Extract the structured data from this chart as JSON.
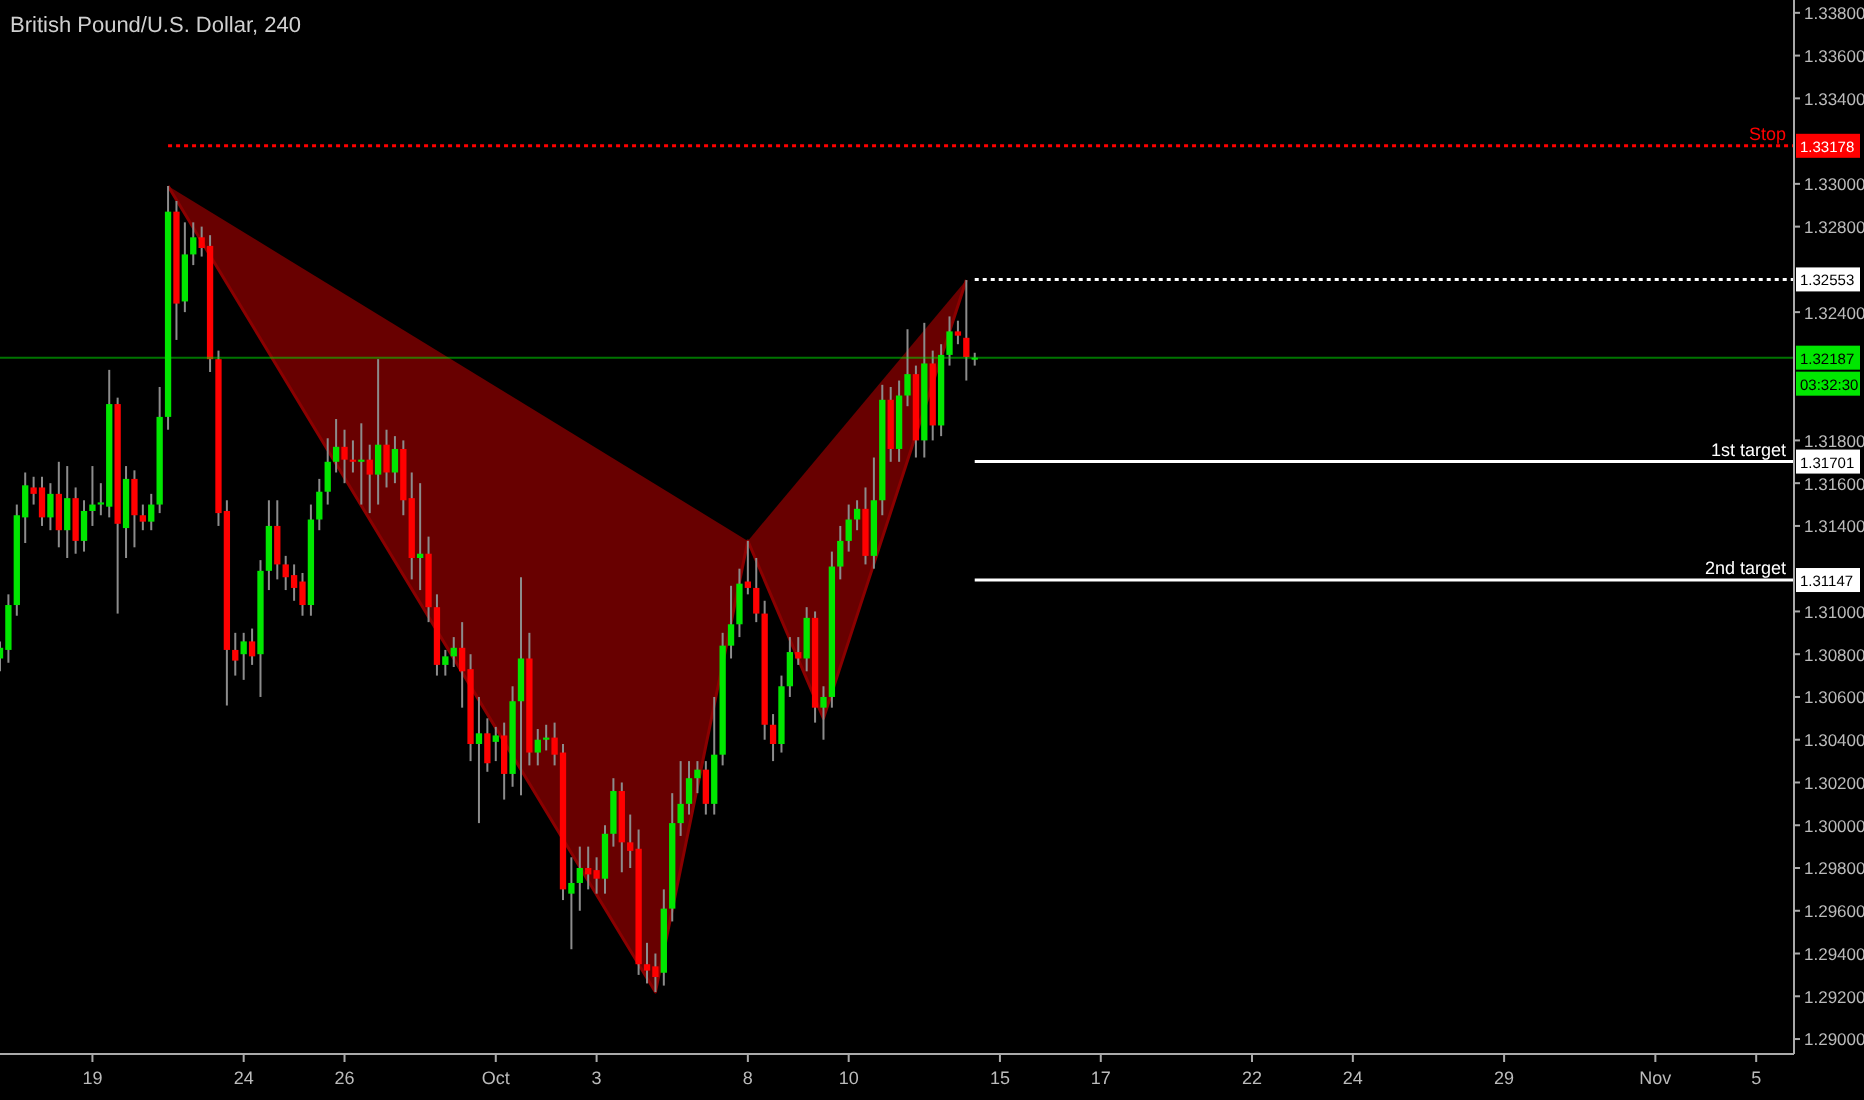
{
  "chart_data": {
    "type": "candlestick",
    "title": "British Pound/U.S. Dollar, 240",
    "categories": [
      null,
      null,
      null,
      null,
      null,
      null,
      null,
      null,
      null,
      null,
      null,
      "19",
      null,
      null,
      null,
      null,
      null,
      null,
      null,
      null,
      null,
      null,
      null,
      null,
      null,
      null,
      null,
      null,
      null,
      "24",
      null,
      null,
      null,
      null,
      null,
      null,
      null,
      null,
      null,
      null,
      null,
      "26",
      null,
      null,
      null,
      null,
      null,
      null,
      null,
      null,
      null,
      null,
      null,
      null,
      null,
      null,
      null,
      null,
      null,
      "Oct",
      null,
      null,
      null,
      null,
      null,
      null,
      null,
      null,
      null,
      null,
      null,
      "3",
      null,
      null,
      null,
      null,
      null,
      null,
      null,
      null,
      null,
      null,
      null,
      null,
      null,
      null,
      null,
      null,
      null,
      "8",
      null,
      null,
      null,
      null,
      null,
      null,
      null,
      null,
      null,
      null,
      null,
      "10",
      null,
      null,
      null,
      null,
      null,
      null,
      null,
      null,
      null,
      null,
      null,
      null,
      null,
      null,
      null,
      null,
      null,
      "15",
      null,
      null,
      null,
      null,
      null,
      null,
      null,
      null,
      null,
      null,
      null,
      "17",
      null,
      null,
      null,
      null,
      null,
      null,
      null,
      null,
      null,
      null,
      null,
      null,
      null,
      null,
      null,
      null,
      null,
      "22",
      null,
      null,
      null,
      null,
      null,
      null,
      null,
      null,
      null,
      null,
      null,
      "24",
      null,
      null,
      null,
      null,
      null,
      null,
      null,
      null,
      null,
      null,
      null,
      null,
      null,
      null,
      null,
      null,
      null,
      "29",
      null,
      null,
      null,
      null,
      null,
      null,
      null,
      null,
      null,
      null,
      null,
      null,
      null,
      null,
      null,
      null,
      null,
      "Nov",
      null,
      null,
      null,
      null,
      null,
      null,
      null,
      null,
      null,
      null,
      null,
      "5",
      null,
      null,
      null,
      null
    ],
    "series": [
      {
        "type": "line",
        "color": "#8b0000",
        "values": [
          null,
          null,
          null,
          null,
          null,
          null,
          null,
          null,
          null,
          null,
          null,
          null,
          null,
          null,
          null,
          null,
          null,
          null,
          null,
          null,
          1.3299,
          null,
          null,
          null,
          null,
          null,
          null,
          null,
          null,
          null,
          null,
          null,
          null,
          null,
          null,
          null,
          null,
          null,
          null,
          null,
          null,
          null,
          null,
          null,
          null,
          null,
          null,
          null,
          null,
          null,
          null,
          null,
          null,
          null,
          null,
          null,
          null,
          null,
          null,
          null,
          null,
          null,
          null,
          null,
          null,
          null,
          null,
          null,
          null,
          null,
          null,
          null,
          null,
          null,
          null,
          null,
          null,
          null,
          1.2922,
          null,
          null,
          null,
          null,
          null,
          null,
          null,
          null,
          null,
          null,
          1.3133,
          null,
          null,
          null,
          null,
          null,
          null,
          null,
          null,
          1.305,
          null,
          null,
          null,
          null,
          null,
          null,
          null,
          null,
          null,
          null,
          null,
          null,
          null,
          null,
          null,
          null,
          1.3255,
          null,
          null,
          null,
          null,
          null,
          null,
          null,
          null,
          null,
          null,
          null,
          null,
          null,
          null,
          null,
          null,
          null,
          null,
          null,
          null,
          null,
          null,
          null,
          null,
          null,
          null,
          null,
          null,
          null,
          null,
          null,
          null,
          null,
          null,
          null,
          null,
          null,
          null,
          null,
          null,
          null,
          null,
          null,
          null,
          null,
          null,
          null,
          null,
          null,
          null,
          null,
          null,
          null,
          null,
          null,
          null,
          null,
          null,
          null,
          null,
          null,
          null,
          null,
          null,
          null,
          null,
          null,
          null,
          null,
          null,
          null,
          null,
          null,
          null,
          null,
          null,
          null,
          null,
          null,
          null,
          null,
          null,
          null,
          null,
          null,
          null,
          null,
          null,
          null,
          null,
          null,
          null,
          null,
          null,
          null,
          null,
          null,
          null
        ]
      },
      {
        "type": "candlestick",
        "ohlc": [
          [
            1.3078,
            1.3086,
            1.3072,
            1.3083
          ],
          [
            1.3082,
            1.3108,
            1.3076,
            1.3103
          ],
          [
            1.3103,
            1.315,
            1.3098,
            1.3145
          ],
          [
            1.3144,
            1.3165,
            1.3132,
            1.3159
          ],
          [
            1.3158,
            1.3163,
            1.315,
            1.3155
          ],
          [
            1.3158,
            1.3163,
            1.314,
            1.3144
          ],
          [
            1.3144,
            1.316,
            1.3138,
            1.3155
          ],
          [
            1.3155,
            1.317,
            1.313,
            1.3138
          ],
          [
            1.3138,
            1.3168,
            1.3125,
            1.3153
          ],
          [
            1.3153,
            1.3158,
            1.3127,
            1.3133
          ],
          [
            1.3133,
            1.3152,
            1.3128,
            1.3147
          ],
          [
            1.3147,
            1.3168,
            1.314,
            1.315
          ],
          [
            1.315,
            1.316,
            1.3145,
            1.3151
          ],
          [
            1.3149,
            1.3213,
            1.3144,
            1.3197
          ],
          [
            1.3197,
            1.32,
            1.3099,
            1.3141
          ],
          [
            1.3139,
            1.3168,
            1.3125,
            1.3162
          ],
          [
            1.3162,
            1.3166,
            1.313,
            1.3145
          ],
          [
            1.3145,
            1.315,
            1.3138,
            1.3142
          ],
          [
            1.3142,
            1.3155,
            1.3138,
            1.315
          ],
          [
            1.315,
            1.3205,
            1.3146,
            1.3191
          ],
          [
            1.3191,
            1.3299,
            1.3185,
            1.3287
          ],
          [
            1.3287,
            1.3292,
            1.3227,
            1.3244
          ],
          [
            1.3245,
            1.3282,
            1.324,
            1.3267
          ],
          [
            1.3267,
            1.3282,
            1.3262,
            1.3275
          ],
          [
            1.3275,
            1.328,
            1.3266,
            1.327
          ],
          [
            1.3271,
            1.3276,
            1.3212,
            1.3218
          ],
          [
            1.3218,
            1.3222,
            1.314,
            1.3146
          ],
          [
            1.3147,
            1.3152,
            1.3056,
            1.3082
          ],
          [
            1.3082,
            1.309,
            1.307,
            1.3077
          ],
          [
            1.308,
            1.309,
            1.3068,
            1.3086
          ],
          [
            1.3086,
            1.3092,
            1.3075,
            1.3079
          ],
          [
            1.308,
            1.3124,
            1.306,
            1.3119
          ],
          [
            1.3119,
            1.3152,
            1.311,
            1.314
          ],
          [
            1.314,
            1.3152,
            1.3115,
            1.3122
          ],
          [
            1.3122,
            1.3126,
            1.311,
            1.3116
          ],
          [
            1.3117,
            1.3122,
            1.3105,
            1.3111
          ],
          [
            1.3114,
            1.3118,
            1.3098,
            1.3103
          ],
          [
            1.3103,
            1.315,
            1.3098,
            1.3143
          ],
          [
            1.3143,
            1.3162,
            1.3138,
            1.3156
          ],
          [
            1.3156,
            1.3181,
            1.315,
            1.317
          ],
          [
            1.317,
            1.319,
            1.3165,
            1.3177
          ],
          [
            1.3177,
            1.3185,
            1.316,
            1.3171
          ],
          [
            1.3171,
            1.318,
            1.3165,
            1.317
          ],
          [
            1.317,
            1.3188,
            1.315,
            1.3171
          ],
          [
            1.3171,
            1.3178,
            1.3146,
            1.3164
          ],
          [
            1.3164,
            1.3218,
            1.315,
            1.3178
          ],
          [
            1.3178,
            1.3185,
            1.3158,
            1.3165
          ],
          [
            1.3165,
            1.3182,
            1.316,
            1.3176
          ],
          [
            1.3176,
            1.318,
            1.3145,
            1.3152
          ],
          [
            1.3153,
            1.3165,
            1.3115,
            1.3125
          ],
          [
            1.3125,
            1.316,
            1.311,
            1.3127
          ],
          [
            1.3127,
            1.3135,
            1.3095,
            1.3102
          ],
          [
            1.3102,
            1.3108,
            1.307,
            1.3075
          ],
          [
            1.3075,
            1.3082,
            1.307,
            1.3079
          ],
          [
            1.3079,
            1.3088,
            1.3074,
            1.3083
          ],
          [
            1.3083,
            1.3095,
            1.3055,
            1.3072
          ],
          [
            1.3073,
            1.308,
            1.303,
            1.3038
          ],
          [
            1.3038,
            1.306,
            1.3001,
            1.3043
          ],
          [
            1.3043,
            1.305,
            1.3025,
            1.3029
          ],
          [
            1.3039,
            1.3046,
            1.303,
            1.3042
          ],
          [
            1.3042,
            1.3048,
            1.3012,
            1.3024
          ],
          [
            1.3024,
            1.3065,
            1.3018,
            1.3058
          ],
          [
            1.3058,
            1.3116,
            1.3014,
            1.3078
          ],
          [
            1.3078,
            1.309,
            1.3028,
            1.3034
          ],
          [
            1.3034,
            1.3045,
            1.3028,
            1.304
          ],
          [
            1.304,
            1.3047,
            1.3035,
            1.3041
          ],
          [
            1.3041,
            1.3048,
            1.3028,
            1.3033
          ],
          [
            1.3034,
            1.3038,
            1.2965,
            1.297
          ],
          [
            1.2968,
            1.2985,
            1.2942,
            1.2973
          ],
          [
            1.2973,
            1.299,
            1.296,
            1.298
          ],
          [
            1.298,
            1.299,
            1.297,
            1.2977
          ],
          [
            1.2979,
            1.2985,
            1.2968,
            1.2975
          ],
          [
            1.2975,
            1.3,
            1.2968,
            1.2996
          ],
          [
            1.2996,
            1.3022,
            1.299,
            1.3016
          ],
          [
            1.3016,
            1.302,
            1.2978,
            1.2992
          ],
          [
            1.2992,
            1.3005,
            1.298,
            1.2988
          ],
          [
            1.2989,
            1.2998,
            1.293,
            1.2935
          ],
          [
            1.2935,
            1.2945,
            1.2926,
            1.2932
          ],
          [
            1.2934,
            1.294,
            1.2922,
            1.2929
          ],
          [
            1.2931,
            1.297,
            1.2925,
            1.2961
          ],
          [
            1.2961,
            1.3015,
            1.2955,
            1.3001
          ],
          [
            1.3001,
            1.303,
            1.2995,
            1.301
          ],
          [
            1.301,
            1.303,
            1.3005,
            1.3022
          ],
          [
            1.3022,
            1.303,
            1.3015,
            1.3026
          ],
          [
            1.3026,
            1.303,
            1.3005,
            1.301
          ],
          [
            1.301,
            1.306,
            1.3005,
            1.3033
          ],
          [
            1.3033,
            1.309,
            1.3028,
            1.3084
          ],
          [
            1.3084,
            1.3112,
            1.3078,
            1.3094
          ],
          [
            1.3094,
            1.312,
            1.3088,
            1.3113
          ],
          [
            1.3114,
            1.3133,
            1.3108,
            1.3111
          ],
          [
            1.3111,
            1.3125,
            1.3095,
            1.3099
          ],
          [
            1.3099,
            1.3105,
            1.304,
            1.3047
          ],
          [
            1.3047,
            1.3052,
            1.303,
            1.3038
          ],
          [
            1.3038,
            1.307,
            1.3034,
            1.3065
          ],
          [
            1.3065,
            1.3088,
            1.306,
            1.3081
          ],
          [
            1.3081,
            1.3088,
            1.3075,
            1.3078
          ],
          [
            1.3078,
            1.3102,
            1.3072,
            1.3097
          ],
          [
            1.3097,
            1.31,
            1.3048,
            1.3055
          ],
          [
            1.3055,
            1.3065,
            1.304,
            1.306
          ],
          [
            1.306,
            1.3128,
            1.3055,
            1.3121
          ],
          [
            1.3121,
            1.314,
            1.3115,
            1.3133
          ],
          [
            1.3133,
            1.315,
            1.3128,
            1.3143
          ],
          [
            1.3143,
            1.3152,
            1.3138,
            1.3148
          ],
          [
            1.3148,
            1.3158,
            1.3122,
            1.3126
          ],
          [
            1.3126,
            1.3172,
            1.312,
            1.3152
          ],
          [
            1.3152,
            1.3206,
            1.3145,
            1.3199
          ],
          [
            1.3199,
            1.3205,
            1.317,
            1.3176
          ],
          [
            1.3176,
            1.3208,
            1.317,
            1.3201
          ],
          [
            1.3201,
            1.3232,
            1.3196,
            1.3211
          ],
          [
            1.3211,
            1.3215,
            1.3172,
            1.318
          ],
          [
            1.318,
            1.3235,
            1.3172,
            1.3216
          ],
          [
            1.3216,
            1.3222,
            1.318,
            1.3187
          ],
          [
            1.3187,
            1.3225,
            1.3182,
            1.322
          ],
          [
            1.322,
            1.3238,
            1.3215,
            1.3231
          ],
          [
            1.3231,
            1.3236,
            1.3225,
            1.3229
          ],
          [
            1.3228,
            1.3255,
            1.3208,
            1.3219
          ],
          [
            1.3218,
            1.3221,
            1.3215,
            1.32187
          ],
          null,
          null,
          null,
          null,
          null,
          null,
          null,
          null,
          null,
          null,
          null,
          null,
          null,
          null,
          null,
          null,
          null,
          null,
          null,
          null,
          null,
          null,
          null,
          null,
          null,
          null,
          null,
          null,
          null,
          null,
          null,
          null,
          null,
          null,
          null,
          null,
          null,
          null,
          null,
          null,
          null,
          null,
          null,
          null,
          null,
          null,
          null,
          null,
          null,
          null,
          null,
          null,
          null,
          null,
          null,
          null,
          null,
          null,
          null,
          null,
          null,
          null,
          null,
          null,
          null,
          null,
          null,
          null,
          null,
          null,
          null,
          null,
          null,
          null,
          null,
          null,
          null,
          null,
          null,
          null,
          null,
          null,
          null,
          null,
          null,
          null,
          null,
          null,
          null,
          null,
          null,
          null,
          null,
          null,
          null,
          null,
          null
        ],
        "colors": [
          "#00e600",
          "#00e600",
          "#00e600",
          "#00e600",
          "#ff0000",
          "#ff0000",
          "#00e600",
          "#ff0000",
          "#00e600",
          "#ff0000",
          "#00e600",
          "#00e600",
          "#00e600",
          "#00e600",
          "#ff0000",
          "#00e600",
          "#ff0000",
          "#ff0000",
          "#00e600",
          "#00e600",
          "#00e600",
          "#ff0000",
          "#00e600",
          "#00e600",
          "#ff0000",
          "#ff0000",
          "#ff0000",
          "#ff0000",
          "#ff0000",
          "#00e600",
          "#ff0000",
          "#00e600",
          "#00e600",
          "#ff0000",
          "#ff0000",
          "#ff0000",
          "#ff0000",
          "#00e600",
          "#00e600",
          "#00e600",
          "#00e600",
          "#ff0000",
          "#ff0000",
          "#00e600",
          "#ff0000",
          "#00e600",
          "#ff0000",
          "#00e600",
          "#ff0000",
          "#ff0000",
          "#00e600",
          "#ff0000",
          "#ff0000",
          "#00e600",
          "#00e600",
          "#ff0000",
          "#ff0000",
          "#00e600",
          "#ff0000",
          "#00e600",
          "#ff0000",
          "#00e600",
          "#00e600",
          "#ff0000",
          "#00e600",
          "#00e600",
          "#ff0000",
          "#ff0000",
          "#00e600",
          "#00e600",
          "#ff0000",
          "#ff0000",
          "#00e600",
          "#00e600",
          "#ff0000",
          "#ff0000",
          "#ff0000",
          "#ff0000",
          "#ff0000",
          "#00e600",
          "#00e600",
          "#00e600",
          "#00e600",
          "#00e600",
          "#ff0000",
          "#00e600",
          "#00e600",
          "#00e600",
          "#00e600",
          "#ff0000",
          "#ff0000",
          "#ff0000",
          "#ff0000",
          "#00e600",
          "#00e600",
          "#ff0000",
          "#00e600",
          "#ff0000",
          "#00e600",
          "#00e600",
          "#00e600",
          "#00e600",
          "#00e600",
          "#ff0000",
          "#00e600",
          "#00e600",
          "#ff0000",
          "#00e600",
          "#00e600",
          "#ff0000",
          "#00e600",
          "#ff0000",
          "#00e600",
          "#00e600",
          "#ff0000",
          "#ff0000",
          "#00e600",
          null,
          null,
          null,
          null,
          null,
          null,
          null,
          null,
          null,
          null,
          null,
          null,
          null,
          null,
          null,
          null,
          null,
          null,
          null,
          null,
          null,
          null,
          null,
          null,
          null,
          null,
          null,
          null,
          null,
          null,
          null,
          null,
          null,
          null,
          null,
          null,
          null,
          null,
          null,
          null,
          null,
          null,
          null,
          null,
          null,
          null,
          null,
          null,
          null,
          null,
          null,
          null,
          null,
          null,
          null,
          null,
          null,
          null,
          null,
          null,
          null,
          null,
          null,
          null,
          null,
          null,
          null,
          null,
          null,
          null,
          null,
          null,
          null,
          null,
          null,
          null,
          null,
          null,
          null,
          null,
          null,
          null,
          null,
          null,
          null,
          null,
          null,
          null,
          null,
          null,
          null,
          null,
          null,
          null,
          null,
          null,
          null
        ]
      }
    ],
    "ylim": [
      1.2893,
      1.3386
    ],
    "yticks": [
      {
        "value": 1.29,
        "label": "1.29000"
      },
      {
        "value": 1.292,
        "label": "1.29200"
      },
      {
        "value": 1.294,
        "label": "1.29400"
      },
      {
        "value": 1.296,
        "label": "1.29600"
      },
      {
        "value": 1.298,
        "label": "1.29800"
      },
      {
        "value": 1.3,
        "label": "1.30000"
      },
      {
        "value": 1.302,
        "label": "1.30200"
      },
      {
        "value": 1.304,
        "label": "1.30400"
      },
      {
        "value": 1.306,
        "label": "1.30600"
      },
      {
        "value": 1.308,
        "label": "1.30800"
      },
      {
        "value": 1.31,
        "label": "1.31000"
      },
      {
        "value": 1.314,
        "label": "1.31400"
      },
      {
        "value": 1.316,
        "label": "1.31600"
      },
      {
        "value": 1.318,
        "label": "1.31800"
      },
      {
        "value": 1.324,
        "label": "1.32400"
      },
      {
        "value": 1.328,
        "label": "1.32800"
      },
      {
        "value": 1.33,
        "label": "1.33000"
      },
      {
        "value": 1.334,
        "label": "1.33400"
      },
      {
        "value": 1.336,
        "label": "1.33600"
      },
      {
        "value": 1.338,
        "label": "1.33800"
      }
    ],
    "ref_lines": [
      {
        "axis": "y",
        "value": 1.33178,
        "label": "Stop",
        "color": "#ff0000",
        "line_style": "dotted"
      },
      {
        "axis": "y",
        "value": 1.32553,
        "label": null,
        "color": "#ffffff",
        "line_style": "dotted"
      },
      {
        "axis": "y",
        "value": 1.32187,
        "label": null,
        "color": "#00e600",
        "line_style": "solid"
      },
      {
        "axis": "y",
        "value": 1.31701,
        "label": "1st target",
        "color": "#ffffff",
        "line_style": "solid"
      },
      {
        "axis": "y",
        "value": 1.31147,
        "label": "2nd target",
        "color": "#ffffff",
        "line_style": "solid"
      }
    ],
    "annotations": [
      {
        "text": "1.33178",
        "y": 1.33178
      },
      {
        "text": "1.32553",
        "y": 1.32553
      },
      {
        "text": "1.32187",
        "y": 1.32187
      },
      {
        "text": "1.31701",
        "y": 1.31701
      },
      {
        "text": "1.31147",
        "y": 1.31147
      },
      "03:32:30"
    ]
  }
}
